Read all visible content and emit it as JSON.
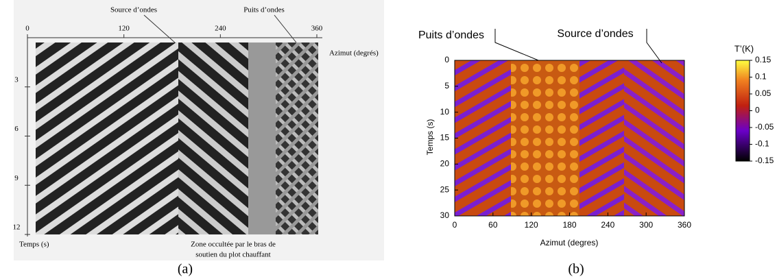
{
  "panel_a": {
    "annotations": [
      "Source d’ondes",
      "Puits d’ondes"
    ],
    "x_label": "Azimut (degrés)",
    "y_label": "Temps (s)",
    "xticks": [
      0,
      120,
      240,
      360
    ],
    "xlim": [
      0,
      360
    ],
    "yticks": [
      3,
      6,
      9,
      12
    ],
    "ylim": [
      0,
      12
    ],
    "note": [
      "Zone occultée par le bras de",
      "soutien du plot chauffant"
    ],
    "caption": "(a)"
  },
  "panel_b": {
    "annotations": [
      "Puits d’ondes",
      "Source d’ondes"
    ],
    "x_label": "Azimut (degres)",
    "y_label": "Temps (s)",
    "xticks": [
      0,
      60,
      120,
      180,
      240,
      300,
      360
    ],
    "xlim": [
      0,
      360
    ],
    "yticks": [
      0,
      5,
      10,
      15,
      20,
      25,
      30
    ],
    "ylim": [
      0,
      30
    ],
    "colorbar": {
      "label": "T’(K)",
      "ticks": [
        0.15,
        0.1,
        0.05,
        0,
        -0.05,
        -0.1,
        -0.15
      ],
      "lim": [
        -0.15,
        0.15
      ]
    },
    "caption": "(b)"
  }
}
